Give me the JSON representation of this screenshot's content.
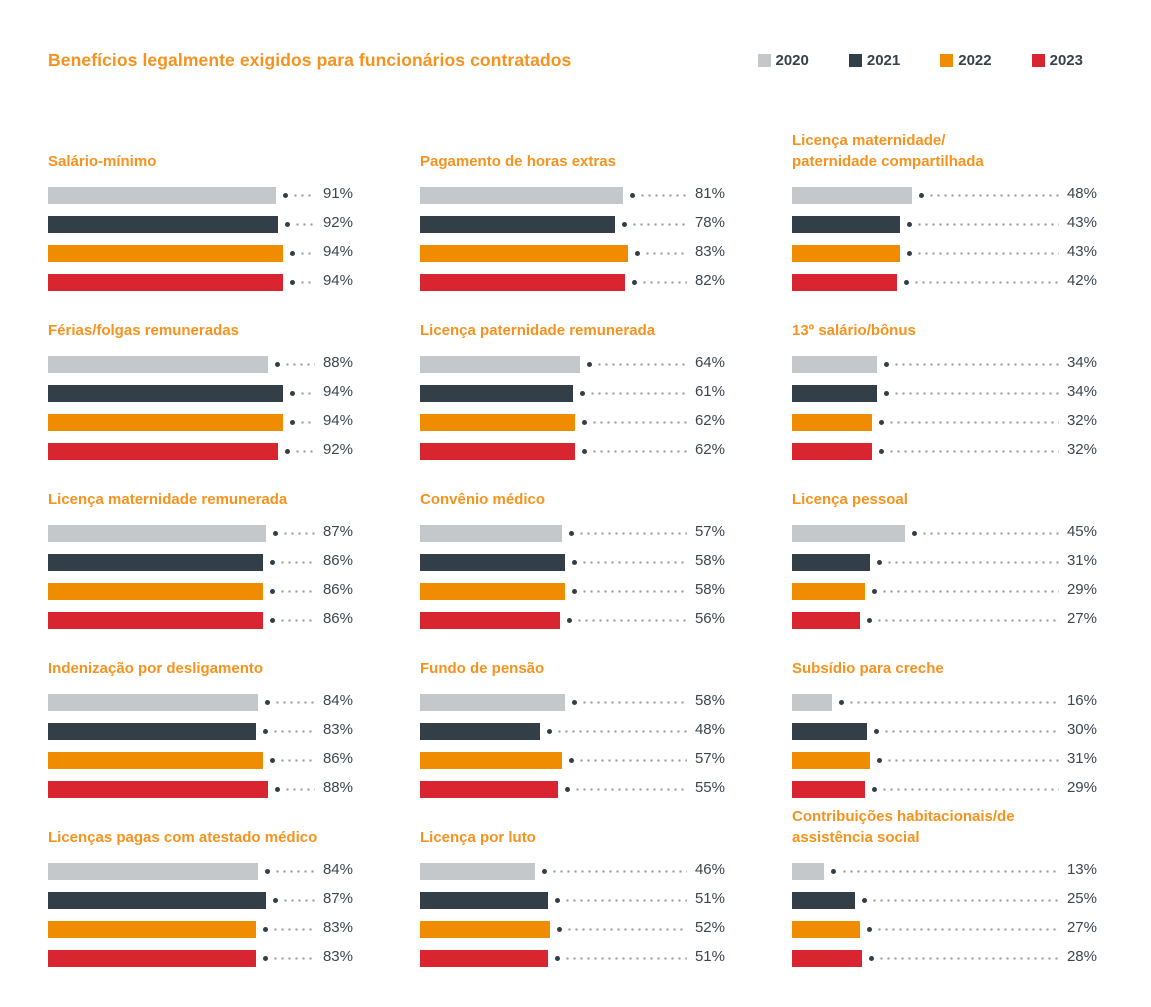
{
  "header": {
    "title": "Benefícios legalmente exigidos para funcionários contratados"
  },
  "legend": [
    {
      "label": "2020",
      "color": "#C4C8CB"
    },
    {
      "label": "2021",
      "color": "#333F48"
    },
    {
      "label": "2022",
      "color": "#F08C00"
    },
    {
      "label": "2023",
      "color": "#D8252F"
    }
  ],
  "colors": {
    "title_orange": "#F6921E",
    "bar_gray": "#C4C8CB",
    "bar_slate": "#333F48",
    "bar_orange": "#F08C00",
    "bar_red": "#D8252F",
    "value_text": "#3C4650",
    "leader_dot": "#9B9B9B",
    "bullet": "#333F48"
  },
  "chart_data": {
    "type": "bar",
    "orientation": "horizontal",
    "unit": "%",
    "title": "Benefícios legalmente exigidos para funcionários contratados",
    "xlim": [
      0,
      100
    ],
    "grid": "off",
    "legend_position": "top-right",
    "series_years": [
      "2020",
      "2021",
      "2022",
      "2023"
    ],
    "series_colors": [
      "#C4C8CB",
      "#333F48",
      "#F08C00",
      "#D8252F"
    ],
    "panels": [
      {
        "title": "Salário-mínimo",
        "values": [
          91,
          92,
          94,
          94
        ]
      },
      {
        "title": "Pagamento de horas extras",
        "values": [
          81,
          78,
          83,
          82
        ]
      },
      {
        "title": "Licença maternidade/\npaternidade compartilhada",
        "values": [
          48,
          43,
          43,
          42
        ]
      },
      {
        "title": "Férias/folgas remuneradas",
        "values": [
          88,
          94,
          94,
          92
        ]
      },
      {
        "title": "Licença paternidade remunerada",
        "values": [
          64,
          61,
          62,
          62
        ]
      },
      {
        "title": "13º salário/bônus",
        "values": [
          34,
          34,
          32,
          32
        ]
      },
      {
        "title": "Licença maternidade remunerada",
        "values": [
          87,
          86,
          86,
          86
        ]
      },
      {
        "title": "Convênio médico",
        "values": [
          57,
          58,
          58,
          56
        ]
      },
      {
        "title": "Licença pessoal",
        "values": [
          45,
          31,
          29,
          27
        ]
      },
      {
        "title": "Indenização por desligamento",
        "values": [
          84,
          83,
          86,
          88
        ]
      },
      {
        "title": "Fundo de pensão",
        "values": [
          58,
          48,
          57,
          55
        ]
      },
      {
        "title": "Subsídio para creche",
        "values": [
          16,
          30,
          31,
          29
        ]
      },
      {
        "title": "Licenças pagas com atestado médico",
        "values": [
          84,
          87,
          83,
          83
        ]
      },
      {
        "title": "Licença por luto",
        "values": [
          46,
          51,
          52,
          51
        ]
      },
      {
        "title": "Contribuições habitacionais/de\nassistência social",
        "values": [
          13,
          25,
          27,
          28
        ]
      }
    ]
  }
}
